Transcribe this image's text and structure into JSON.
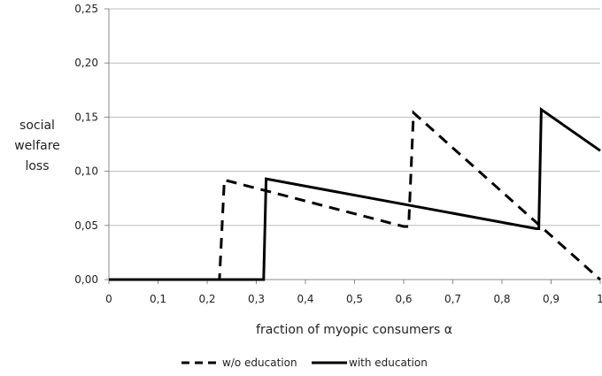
{
  "chart_data": {
    "type": "line",
    "title": "",
    "xlabel": "fraction of myopic consumers α",
    "ylabel": [
      "social",
      "welfare",
      "loss"
    ],
    "xlim": [
      0,
      1
    ],
    "ylim": [
      0,
      0.25
    ],
    "x_ticks": [
      "0",
      "0,1",
      "0,2",
      "0,3",
      "0,4",
      "0,5",
      "0,6",
      "0,7",
      "0,8",
      "0,9",
      "1"
    ],
    "y_ticks": [
      "0,00",
      "0,05",
      "0,10",
      "0,15",
      "0,20",
      "0,25"
    ],
    "grid": "horizontal",
    "legend_position": "bottom",
    "series": [
      {
        "name": "w/o education",
        "style": "dashed",
        "color": "#000000",
        "x": [
          0,
          0.225,
          0.235,
          0.6,
          0.61,
          0.62,
          1.0
        ],
        "y": [
          0,
          0,
          0.092,
          0.049,
          0.049,
          0.154,
          0
        ]
      },
      {
        "name": "with education",
        "style": "solid",
        "color": "#000000",
        "x": [
          0,
          0.315,
          0.32,
          0.87,
          0.875,
          0.88,
          1.0
        ],
        "y": [
          0,
          0,
          0.093,
          0.047,
          0.047,
          0.157,
          0.119
        ]
      }
    ]
  }
}
